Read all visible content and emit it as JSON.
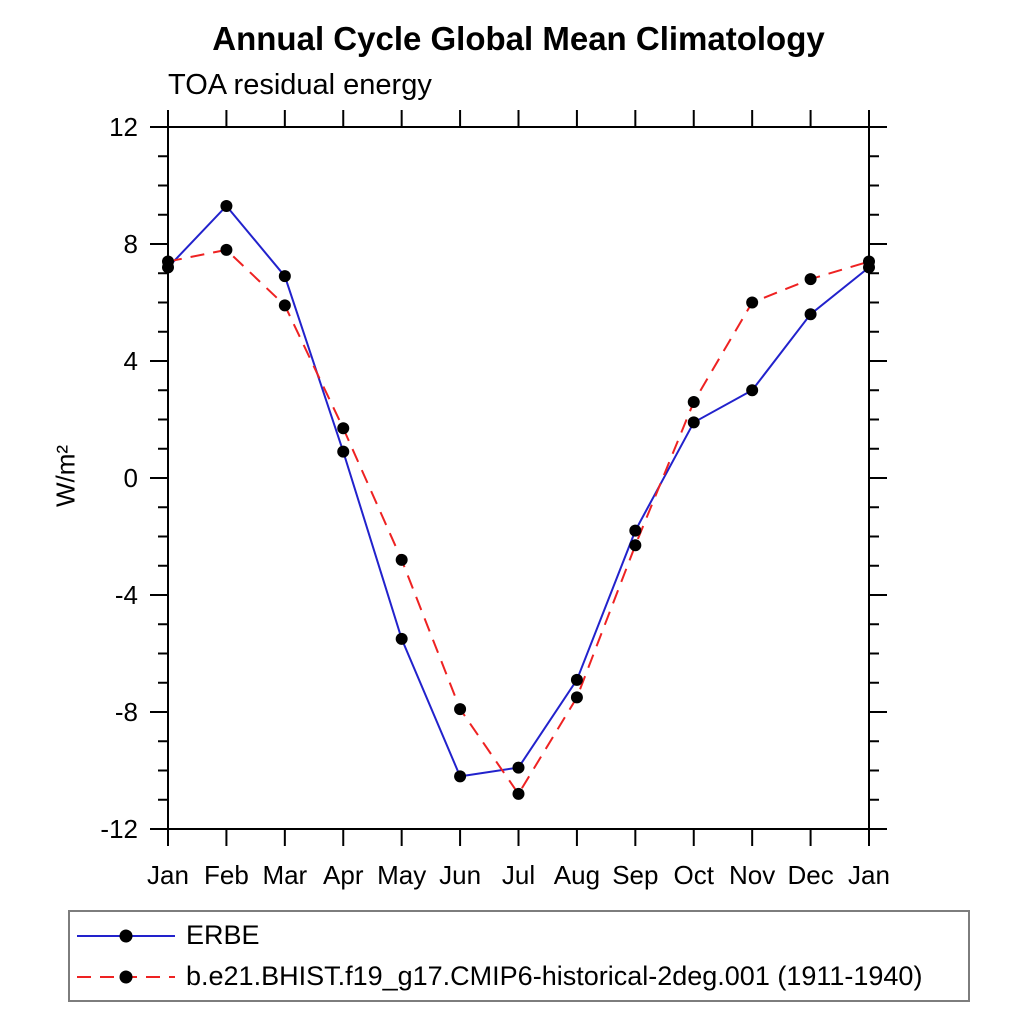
{
  "chart_data": {
    "type": "line",
    "title": "Annual Cycle Global Mean Climatology",
    "subtitle": "TOA residual energy",
    "ylabel": "W/m²",
    "xlabel": "",
    "ylim": [
      -12,
      12
    ],
    "ytick_interval_major": 4,
    "ytick_interval_minor": 1,
    "grid": "off",
    "legend_position": "bottom",
    "categories": [
      "Jan",
      "Feb",
      "Mar",
      "Apr",
      "May",
      "Jun",
      "Jul",
      "Aug",
      "Sep",
      "Oct",
      "Nov",
      "Dec",
      "Jan"
    ],
    "marker": "filled-circle",
    "marker_color": "#000000",
    "series": [
      {
        "name": "ERBE",
        "color": "#2222cc",
        "line_style": "solid",
        "values": [
          7.2,
          9.3,
          6.9,
          0.9,
          -5.5,
          -10.2,
          -9.9,
          -6.9,
          -1.8,
          1.9,
          3.0,
          5.6,
          7.2
        ]
      },
      {
        "name": "b.e21.BHIST.f19_g17.CMIP6-historical-2deg.001 (1911-1940)",
        "color": "#ee2222",
        "line_style": "dashed",
        "values": [
          7.4,
          7.8,
          5.9,
          1.7,
          -2.8,
          -7.9,
          -10.8,
          -7.5,
          -2.3,
          2.6,
          6.0,
          6.8,
          7.4
        ]
      }
    ]
  }
}
